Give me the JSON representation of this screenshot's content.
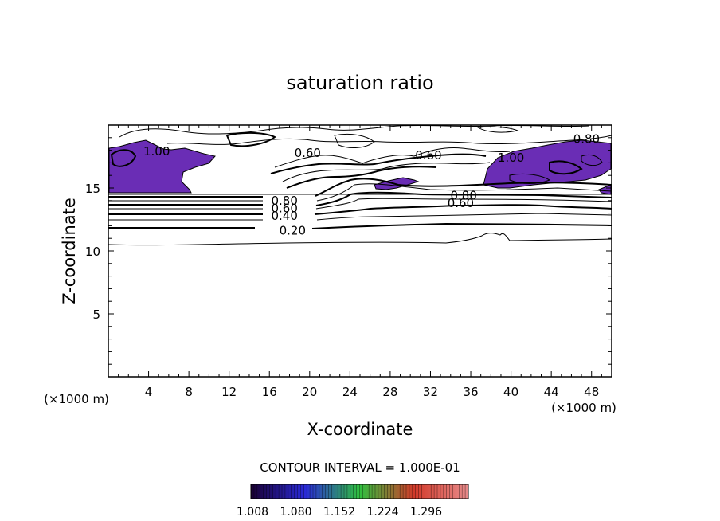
{
  "chart_data": {
    "type": "contour",
    "title": "saturation ratio",
    "xlabel": "X-coordinate",
    "ylabel": "Z-coordinate",
    "x_unit": "(×1000 m)",
    "xlim": [
      0,
      50
    ],
    "ylim": [
      0,
      20
    ],
    "xticks": [
      4,
      8,
      12,
      16,
      20,
      24,
      28,
      32,
      36,
      40,
      44,
      48
    ],
    "yticks": [
      5,
      10,
      15
    ],
    "contour_interval_label": "CONTOUR INTERVAL = 1.000E-01",
    "contour_interval": 0.1,
    "contour_labels": [
      {
        "text": "0.20",
        "x": 18.3,
        "z": 11.6
      },
      {
        "text": "0.40",
        "x": 17.5,
        "z": 12.8
      },
      {
        "text": "0.60",
        "x": 17.5,
        "z": 13.4
      },
      {
        "text": "0.80",
        "x": 17.5,
        "z": 14.0
      },
      {
        "text": "0.60",
        "x": 19.8,
        "z": 17.8
      },
      {
        "text": "0.60",
        "x": 31.8,
        "z": 17.6
      },
      {
        "text": "0.80",
        "x": 35.3,
        "z": 14.4
      },
      {
        "text": "0.60",
        "x": 35.0,
        "z": 13.8
      },
      {
        "text": "1.00",
        "x": 4.8,
        "z": 17.9
      },
      {
        "text": "1.00",
        "x": 40.0,
        "z": 17.4
      },
      {
        "text": "0.80",
        "x": 47.5,
        "z": 18.9
      }
    ],
    "colorbar": {
      "ticks": [
        "1.008",
        "1.080",
        "1.152",
        "1.224",
        "1.296"
      ],
      "colors": [
        "#1a0033",
        "#2a2ad8",
        "#2fbf3f",
        "#d23a2a",
        "#e88b8b"
      ]
    },
    "supersaturated_fill_color": "#6a2db5"
  }
}
